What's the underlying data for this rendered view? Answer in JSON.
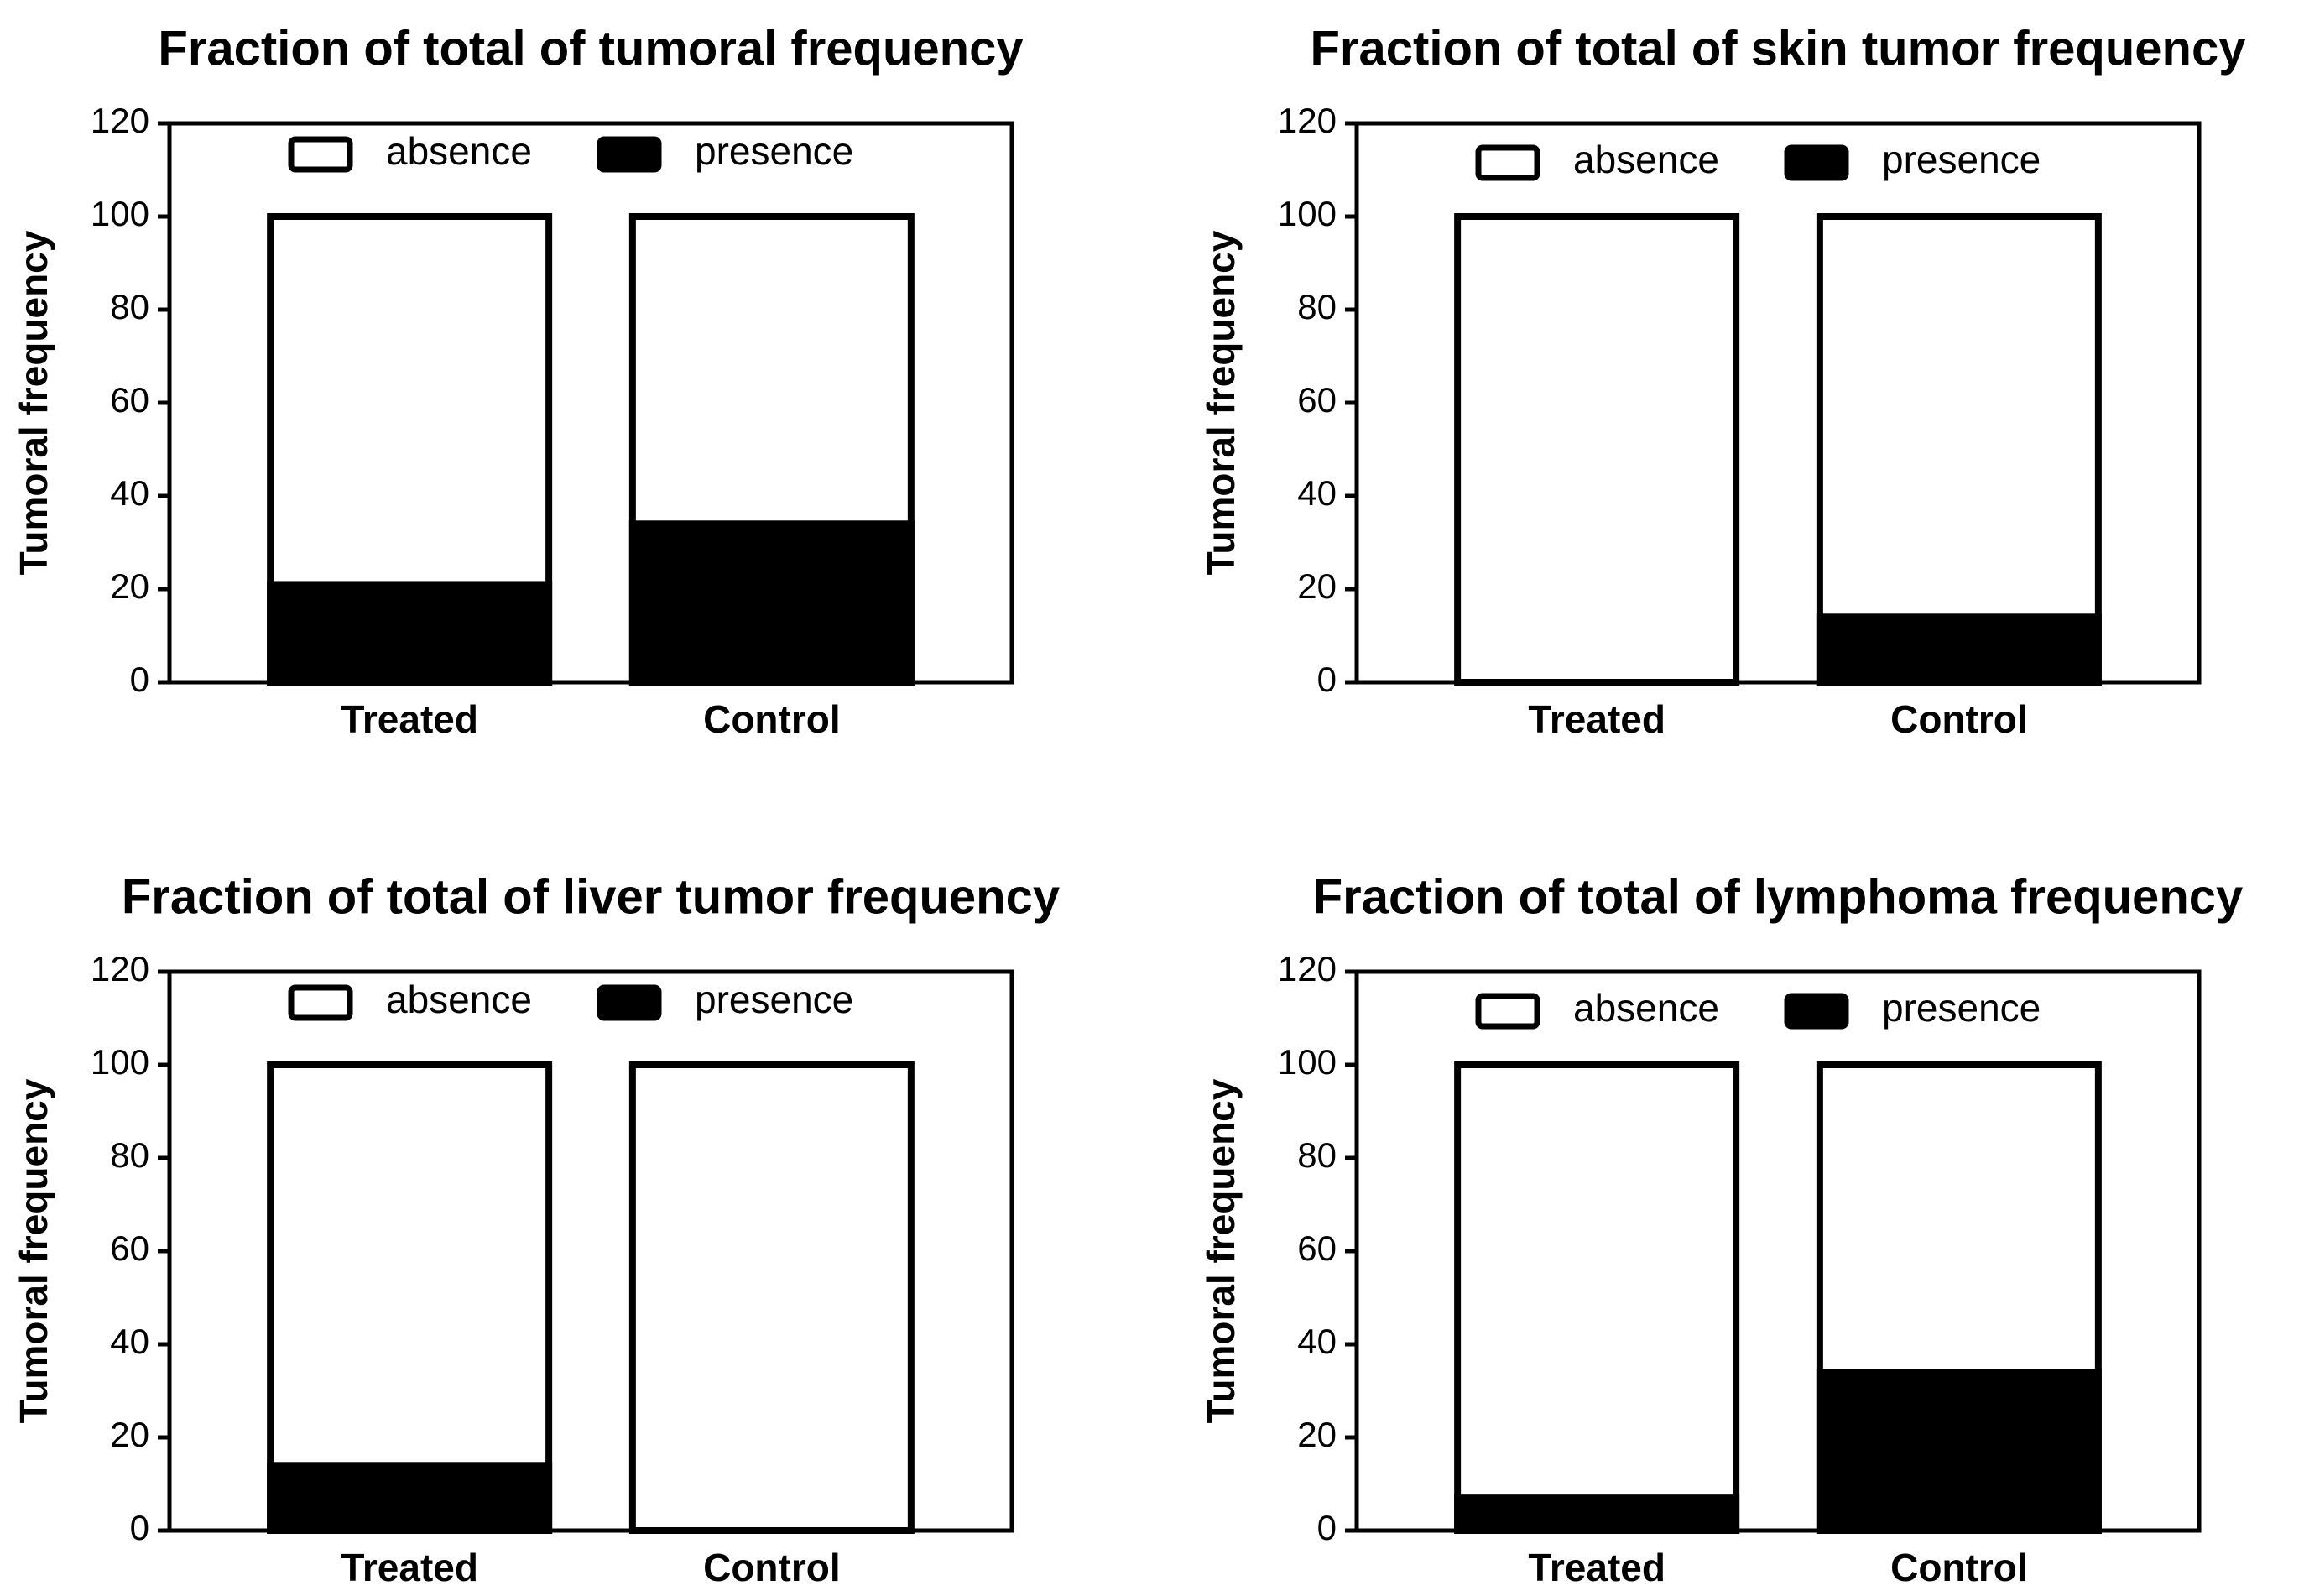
{
  "chart_data": [
    {
      "type": "bar",
      "stacked": true,
      "title": "Fraction of total of tumoral frequency",
      "ylabel": "Tumoral frequency",
      "xlabel": "",
      "ylim": [
        0,
        120
      ],
      "yticks": [
        "0",
        "20",
        "40",
        "60",
        "80",
        "100",
        "120"
      ],
      "categories": [
        "Treated",
        "Control"
      ],
      "series": [
        {
          "name": "presence",
          "values": [
            21,
            34
          ],
          "color": "#000000"
        },
        {
          "name": "absence",
          "values": [
            79,
            66
          ],
          "color": "#ffffff"
        }
      ],
      "legend": [
        "absence",
        "presence"
      ],
      "legend_position": "top-center"
    },
    {
      "type": "bar",
      "stacked": true,
      "title": "Fraction of total of skin tumor frequency",
      "ylabel": "Tumoral frequency",
      "xlabel": "",
      "ylim": [
        0,
        120
      ],
      "yticks": [
        "0",
        "20",
        "40",
        "60",
        "80",
        "100",
        "120"
      ],
      "categories": [
        "Treated",
        "Control"
      ],
      "series": [
        {
          "name": "presence",
          "values": [
            0,
            14
          ],
          "color": "#000000"
        },
        {
          "name": "absence",
          "values": [
            100,
            86
          ],
          "color": "#ffffff"
        }
      ],
      "legend": [
        "absence",
        "presence"
      ],
      "legend_position": "top-center"
    },
    {
      "type": "bar",
      "stacked": true,
      "title": "Fraction of total of liver tumor frequency",
      "ylabel": "Tumoral frequency",
      "xlabel": "",
      "ylim": [
        0,
        120
      ],
      "yticks": [
        "0",
        "20",
        "40",
        "60",
        "80",
        "100",
        "120"
      ],
      "categories": [
        "Treated",
        "Control"
      ],
      "series": [
        {
          "name": "presence",
          "values": [
            14,
            0
          ],
          "color": "#000000"
        },
        {
          "name": "absence",
          "values": [
            86,
            100
          ],
          "color": "#ffffff"
        }
      ],
      "legend": [
        "absence",
        "presence"
      ],
      "legend_position": "top-center"
    },
    {
      "type": "bar",
      "stacked": true,
      "title": "Fraction of total of lymphoma frequency",
      "ylabel": "Tumoral frequency",
      "xlabel": "",
      "ylim": [
        0,
        120
      ],
      "yticks": [
        "0",
        "20",
        "40",
        "60",
        "80",
        "100",
        "120"
      ],
      "categories": [
        "Treated",
        "Control"
      ],
      "series": [
        {
          "name": "presence",
          "values": [
            7,
            34
          ],
          "color": "#000000"
        },
        {
          "name": "absence",
          "values": [
            93,
            66
          ],
          "color": "#ffffff"
        }
      ],
      "legend": [
        "absence",
        "presence"
      ],
      "legend_position": "top-center"
    }
  ]
}
